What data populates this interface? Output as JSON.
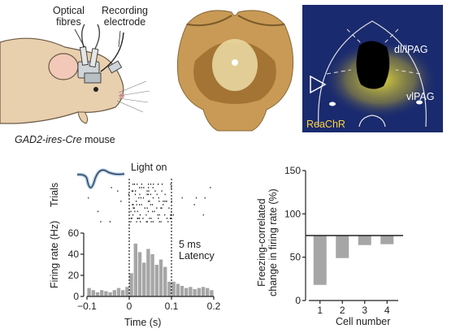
{
  "panel_a": {
    "label_optical": "Optical\nfibres",
    "label_recording": "Recording\nelectrode",
    "caption_strain": "GAD2-ires-Cre",
    "caption_suffix": " mouse"
  },
  "panel_c": {
    "region_dl": "dl/lPAG",
    "region_vl": "vlPAG",
    "stain_label": "ReaChR",
    "colors": {
      "background": "#1a2a6e",
      "stain": "#f2e63a",
      "label_yellow": "#ffd23a"
    }
  },
  "panel_d": {
    "light_on_label": "Light on",
    "trials_label": "Trials",
    "latency_label": "5 ms\nLatency"
  },
  "chart_data": [
    {
      "type": "bar",
      "xlabel": "Time (s)",
      "ylabel": "Firing rate (Hz)",
      "xlim": [
        -0.1,
        0.2
      ],
      "ylim": [
        0,
        60
      ],
      "x_ticks": [
        "−0.1",
        "0",
        "0.1",
        "0.2"
      ],
      "y_ticks": [
        "0",
        "20",
        "40",
        "60"
      ],
      "bin_width": 0.01,
      "bin_starts": [
        -0.1,
        -0.09,
        -0.08,
        -0.07,
        -0.06,
        -0.05,
        -0.04,
        -0.03,
        -0.02,
        -0.01,
        0,
        0.01,
        0.02,
        0.03,
        0.04,
        0.05,
        0.06,
        0.07,
        0.08,
        0.09,
        0.1,
        0.11,
        0.12,
        0.13,
        0.14,
        0.15,
        0.16,
        0.17,
        0.18,
        0.19
      ],
      "values": [
        8,
        6,
        4,
        6,
        5,
        4,
        6,
        8,
        6,
        9,
        22,
        50,
        42,
        32,
        45,
        40,
        30,
        35,
        28,
        14,
        14,
        12,
        10,
        8,
        9,
        7,
        8,
        9,
        8,
        6
      ],
      "markers": [
        0,
        0.1
      ]
    },
    {
      "type": "bar",
      "xlabel": "Cell number",
      "ylabel": "Freezing-correlated\nchange in firing rate (%)",
      "categories": [
        "1",
        "2",
        "3",
        "4"
      ],
      "values": [
        18,
        49,
        64,
        65
      ],
      "baseline": 75,
      "ylim": [
        0,
        150
      ],
      "y_ticks": [
        "0",
        "50",
        "100",
        "150"
      ]
    }
  ]
}
